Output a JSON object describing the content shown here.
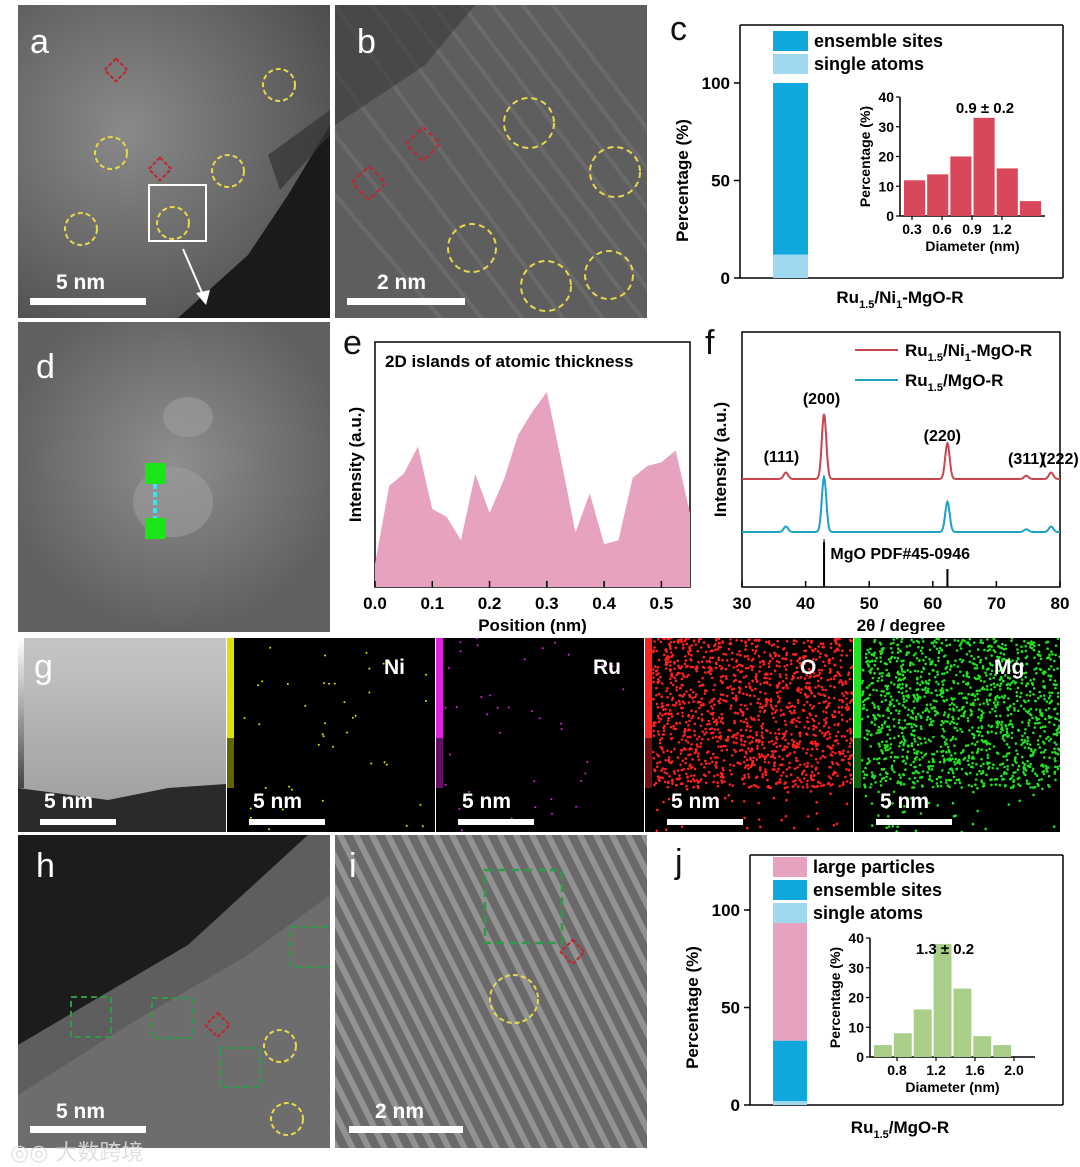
{
  "panels": {
    "a": {
      "label": "a",
      "scale": "5 nm"
    },
    "b": {
      "label": "b",
      "scale": "2 nm"
    },
    "c": {
      "label": "c"
    },
    "d": {
      "label": "d"
    },
    "e": {
      "label": "e"
    },
    "f": {
      "label": "f"
    },
    "g": {
      "label": "g"
    },
    "h": {
      "label": "h",
      "scale": "5 nm"
    },
    "i": {
      "label": "i",
      "scale": "2 nm"
    },
    "j": {
      "label": "j"
    }
  },
  "colors": {
    "ensemble": "#0fa8dc",
    "single": "#9fd9f0",
    "large": "#e7a2c0",
    "hist_c": "#d9475a",
    "hist_j": "#a9ce8a",
    "area_e": "#e7a2c0",
    "red_line": "#c8474f",
    "blue_line": "#1aa3c4"
  },
  "chart_data": [
    {
      "id": "c-stacked",
      "type": "bar",
      "ylabel": "Percentage (%)",
      "yticks": [
        "0",
        "50",
        "100"
      ],
      "ylim": [
        0,
        100
      ],
      "xlabel_main": "Ru",
      "xlabel_sub1": "1.5",
      "xlabel_mid": "/Ni",
      "xlabel_sub2": "1",
      "xlabel_end": "-MgO-R",
      "legend": [
        "ensemble sites",
        "single atoms"
      ],
      "series": [
        {
          "name": "single atoms",
          "values": [
            12
          ]
        },
        {
          "name": "ensemble sites",
          "values": [
            88
          ]
        }
      ]
    },
    {
      "id": "c-hist",
      "type": "bar",
      "title": "0.9 ± 0.2",
      "xlabel": "Diameter (nm)",
      "ylabel": "Percentage (%)",
      "xticks": [
        "0.3",
        "0.6",
        "0.9",
        "1.2"
      ],
      "yticks": [
        "0",
        "10",
        "20",
        "30",
        "40"
      ],
      "ylim": [
        0,
        40
      ],
      "categories": [
        "0.25",
        "0.45",
        "0.65",
        "0.85",
        "1.05",
        "1.25"
      ],
      "values": [
        12,
        14,
        20,
        33,
        16,
        5
      ]
    },
    {
      "id": "e-profile",
      "type": "area",
      "title": "2D islands of atomic thickness",
      "xlabel": "Position (nm)",
      "ylabel": "Intensity (a.u.)",
      "xticks": [
        "0.0",
        "0.1",
        "0.2",
        "0.3",
        "0.4",
        "0.5"
      ],
      "xlim": [
        0,
        0.55
      ],
      "ylim": [
        0,
        100
      ],
      "x": [
        0,
        0.025,
        0.05,
        0.075,
        0.1,
        0.125,
        0.15,
        0.175,
        0.2,
        0.225,
        0.25,
        0.275,
        0.3,
        0.325,
        0.35,
        0.375,
        0.4,
        0.425,
        0.45,
        0.475,
        0.5,
        0.525,
        0.55
      ],
      "y": [
        12,
        52,
        58,
        72,
        40,
        36,
        24,
        58,
        38,
        55,
        78,
        90,
        100,
        65,
        28,
        48,
        22,
        24,
        56,
        62,
        64,
        70,
        38
      ]
    },
    {
      "id": "f-xrd",
      "type": "line",
      "xlabel": "2θ / degree",
      "ylabel": "Intensity (a.u.)",
      "xticks": [
        "30",
        "40",
        "50",
        "60",
        "70",
        "80"
      ],
      "xlim": [
        30,
        80
      ],
      "legend": [
        {
          "main": "Ru",
          "sub": "1.5",
          "rest": "/Ni",
          "sub2": "1",
          "end": "-MgO-R"
        },
        {
          "main": "Ru",
          "sub": "1.5",
          "rest": "/MgO-R",
          "sub2": "",
          "end": ""
        }
      ],
      "peaks": [
        {
          "label": "(111)",
          "pos": 36.9,
          "height": 0.1
        },
        {
          "label": "(200)",
          "pos": 42.9,
          "height": 1.0
        },
        {
          "label": "(220)",
          "pos": 62.3,
          "height": 0.55
        },
        {
          "label": "(311)",
          "pos": 74.7,
          "height": 0.05
        },
        {
          "label": "(222)",
          "pos": 78.6,
          "height": 0.1
        }
      ],
      "reference": {
        "label": "MgO PDF#45-0946",
        "lines": [
          42.9,
          62.3
        ]
      }
    },
    {
      "id": "j-stacked",
      "type": "bar",
      "ylabel": "Percentage (%)",
      "yticks": [
        "0",
        "50",
        "100"
      ],
      "ylim": [
        0,
        100
      ],
      "xlabel_main": "Ru",
      "xlabel_sub1": "1.5",
      "xlabel_end": "/MgO-R",
      "legend": [
        "large particles",
        "ensemble sites",
        "single atoms"
      ],
      "series": [
        {
          "name": "single atoms",
          "values": [
            2
          ]
        },
        {
          "name": "ensemble sites",
          "values": [
            31
          ]
        },
        {
          "name": "large particles",
          "values": [
            67
          ]
        }
      ]
    },
    {
      "id": "j-hist",
      "type": "bar",
      "title": "1.3 ± 0.2",
      "xlabel": "Diameter (nm)",
      "ylabel": "Percentage (%)",
      "xticks": [
        "0.8",
        "1.2",
        "1.6",
        "2.0"
      ],
      "yticks": [
        "0",
        "10",
        "20",
        "30",
        "40"
      ],
      "ylim": [
        0,
        40
      ],
      "categories": [
        "0.7",
        "0.85",
        "1.0",
        "1.15",
        "1.3",
        "1.45",
        "1.6",
        "1.75"
      ],
      "values": [
        4,
        8,
        16,
        38,
        23,
        7,
        4,
        0
      ]
    }
  ],
  "eds": [
    {
      "name": "Ni",
      "scale": "5 nm",
      "color": "#e0e000"
    },
    {
      "name": "Ru",
      "scale": "5 nm",
      "color": "#e020e0"
    },
    {
      "name": "O",
      "scale": "5 nm",
      "color": "#ff2020"
    },
    {
      "name": "Mg",
      "scale": "5 nm",
      "color": "#22e022"
    }
  ],
  "g_scale": "5 nm",
  "watermark": "大数跨境"
}
